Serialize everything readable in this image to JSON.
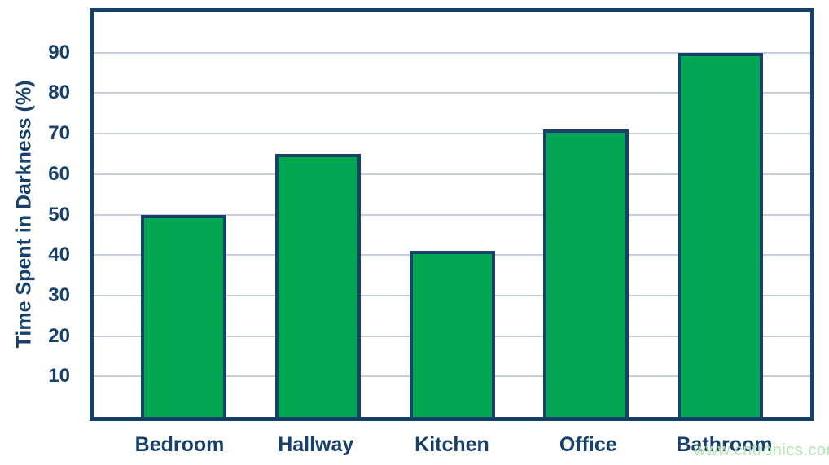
{
  "chart_data": {
    "type": "bar",
    "categories": [
      "Bedroom",
      "Hallway",
      "Kitchen",
      "Office",
      "Bathroom"
    ],
    "values": [
      50,
      65,
      41,
      71,
      90
    ],
    "title": "",
    "xlabel": "",
    "ylabel": "Time Spent in Darkness (%)",
    "ylim": [
      0,
      100
    ],
    "yticks": [
      10,
      20,
      30,
      40,
      50,
      60,
      70,
      80,
      90
    ],
    "grid": true,
    "legend": false,
    "colors": {
      "bar_fill": "#00A651",
      "bar_border": "#17406B",
      "axis_border": "#17406B",
      "gridline": "#C9CEDF",
      "text": "#17406B"
    }
  },
  "watermark": {
    "text": "www.cntronics.com",
    "color": "#B5E2B6"
  }
}
